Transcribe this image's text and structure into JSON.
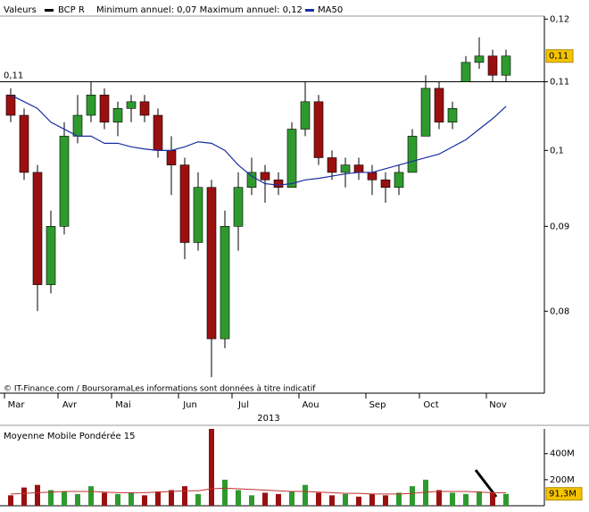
{
  "chart_data": [
    {
      "type": "candlestick",
      "header_label": "Valeurs",
      "name": "BCP R",
      "color": "#000000",
      "subtitle": "Minimum annuel: 0,07 Maximum annuel: 0,12",
      "source": "© IT-Finance.com / BoursoramaLes informations sont données à titre indicatif",
      "year_label": "2013",
      "categories": [
        "Mar",
        null,
        null,
        null,
        "Avr",
        null,
        null,
        null,
        "Mai",
        null,
        null,
        null,
        null,
        "Jun",
        null,
        null,
        null,
        "Jul",
        null,
        null,
        null,
        null,
        "Aou",
        null,
        null,
        null,
        null,
        "Sep",
        null,
        null,
        null,
        "Oct",
        null,
        null,
        null,
        null,
        "Nov",
        null
      ],
      "open": [
        0.108,
        0.105,
        0.097,
        0.083,
        0.09,
        0.102,
        0.105,
        0.108,
        0.104,
        0.106,
        0.107,
        0.105,
        0.1,
        0.098,
        0.088,
        0.095,
        0.077,
        0.09,
        0.095,
        0.097,
        0.096,
        0.095,
        0.103,
        0.107,
        0.099,
        0.097,
        0.098,
        0.097,
        0.096,
        0.095,
        0.097,
        0.102,
        0.109,
        0.104,
        0.11,
        0.113,
        0.114,
        0.111
      ],
      "high": [
        0.109,
        0.106,
        0.098,
        0.092,
        0.104,
        0.108,
        0.11,
        0.109,
        0.107,
        0.108,
        0.108,
        0.106,
        0.102,
        0.099,
        0.097,
        0.096,
        0.092,
        0.097,
        0.099,
        0.098,
        0.097,
        0.104,
        0.11,
        0.108,
        0.1,
        0.099,
        0.099,
        0.098,
        0.097,
        0.098,
        0.103,
        0.111,
        0.11,
        0.107,
        0.114,
        0.117,
        0.115,
        0.115
      ],
      "low": [
        0.104,
        0.096,
        0.08,
        0.082,
        0.089,
        0.101,
        0.104,
        0.103,
        0.102,
        0.104,
        0.104,
        0.099,
        0.094,
        0.086,
        0.087,
        0.073,
        0.076,
        0.087,
        0.094,
        0.093,
        0.094,
        0.095,
        0.102,
        0.098,
        0.096,
        0.095,
        0.096,
        0.094,
        0.093,
        0.094,
        0.097,
        0.102,
        0.103,
        0.103,
        0.11,
        0.112,
        0.11,
        0.11
      ],
      "close": [
        0.105,
        0.097,
        0.083,
        0.09,
        0.102,
        0.105,
        0.108,
        0.104,
        0.106,
        0.107,
        0.105,
        0.1,
        0.098,
        0.088,
        0.095,
        0.077,
        0.09,
        0.095,
        0.097,
        0.096,
        0.095,
        0.103,
        0.107,
        0.099,
        0.097,
        0.098,
        0.097,
        0.096,
        0.095,
        0.097,
        0.102,
        0.109,
        0.104,
        0.106,
        0.113,
        0.114,
        0.111,
        0.114
      ],
      "up_color": "#2e9a2e",
      "down_color": "#9a1010",
      "series": [
        {
          "name": "MA50",
          "color": "#1a2fa0",
          "values": [
            0.108,
            0.107,
            0.106,
            0.104,
            0.103,
            0.102,
            0.102,
            0.101,
            0.101,
            0.1005,
            0.1002,
            0.1,
            0.1,
            0.1005,
            0.1012,
            0.101,
            0.1,
            0.098,
            0.0965,
            0.0955,
            0.0953,
            0.0955,
            0.096,
            0.0962,
            0.0965,
            0.0968,
            0.097,
            0.097,
            0.0975,
            0.098,
            0.0985,
            0.099,
            0.0995,
            0.1005,
            0.1015,
            0.103,
            0.1045,
            0.1063
          ]
        }
      ],
      "log_scale": true,
      "ylim": [
        0.0714,
        0.1205
      ],
      "yticks": [
        {
          "value": 0.08,
          "label": "0,08"
        },
        {
          "value": 0.09,
          "label": "0,09"
        },
        {
          "value": 0.1,
          "label": "0,1"
        },
        {
          "value": 0.11,
          "label": "0,11"
        },
        {
          "value": 0.12,
          "label": "0,12"
        }
      ],
      "reference_line": {
        "value": 0.11,
        "label": "0,11"
      },
      "last_price": {
        "value": 0.114,
        "label": "0,11"
      }
    },
    {
      "type": "bar",
      "title": "Moyenne Mobile Pondérée 15",
      "values": [
        80000000,
        140000000,
        160000000,
        120000000,
        110000000,
        90000000,
        150000000,
        100000000,
        90000000,
        100000000,
        80000000,
        110000000,
        120000000,
        150000000,
        90000000,
        590000000,
        200000000,
        120000000,
        80000000,
        100000000,
        90000000,
        110000000,
        160000000,
        100000000,
        80000000,
        90000000,
        70000000,
        90000000,
        80000000,
        100000000,
        150000000,
        200000000,
        120000000,
        100000000,
        90000000,
        110000000,
        100000000,
        91300000
      ],
      "ma": {
        "color": "#c03030",
        "values": [
          90000000,
          95000000,
          100000000,
          105000000,
          110000000,
          110000000,
          110000000,
          105000000,
          100000000,
          100000000,
          100000000,
          105000000,
          110000000,
          115000000,
          115000000,
          130000000,
          135000000,
          130000000,
          125000000,
          120000000,
          115000000,
          110000000,
          110000000,
          105000000,
          100000000,
          95000000,
          95000000,
          90000000,
          90000000,
          90000000,
          95000000,
          105000000,
          110000000,
          110000000,
          110000000,
          105000000,
          100000000,
          100000000
        ]
      },
      "ylim": [
        0,
        590000000
      ],
      "yticks": [
        {
          "value": 200000000,
          "label": "200M"
        },
        {
          "value": 400000000,
          "label": "400M"
        }
      ],
      "last_value": {
        "value": 91300000,
        "label": "91,3M"
      }
    }
  ]
}
